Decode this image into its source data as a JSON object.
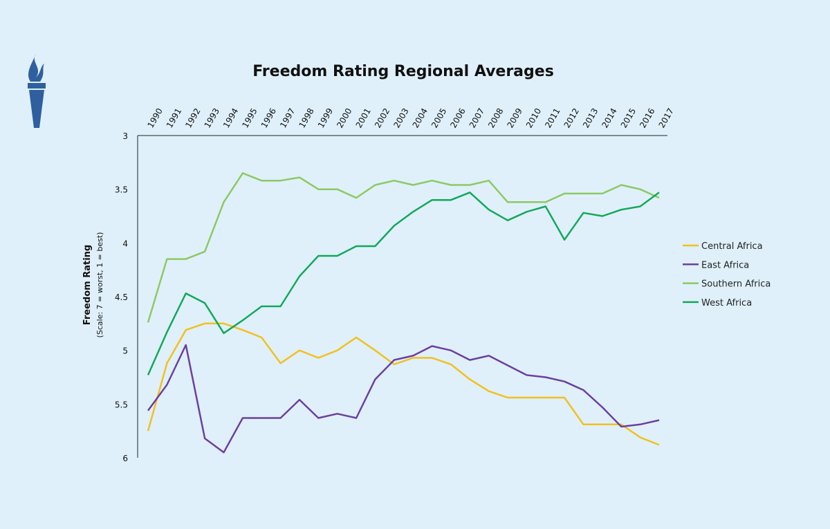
{
  "chart_data": {
    "type": "line",
    "title": "Freedom Rating Regional Averages",
    "xlabel": "",
    "ylabel": "Freedom Rating",
    "ylabel_sub": "(Scale: 7 = worst, 1 = best)",
    "ylim": [
      3,
      6
    ],
    "y_inverted": true,
    "y_ticks": [
      "3",
      "3.5",
      "4",
      "4.5",
      "5",
      "5.5",
      "6"
    ],
    "x_axis_position": "top",
    "grid": false,
    "legend_position": "right",
    "x": [
      "1990",
      "1991",
      "1992",
      "1993",
      "1994",
      "1995",
      "1996",
      "1997",
      "1998",
      "1999",
      "2000",
      "2001",
      "2002",
      "2003",
      "2004",
      "2005",
      "2006",
      "2007",
      "2008",
      "2009",
      "2010",
      "2011",
      "2012",
      "2013",
      "2014",
      "2015",
      "2016",
      "2017"
    ],
    "series": [
      {
        "name": "Central Africa",
        "color": "#f2c01e",
        "values": [
          5.75,
          5.12,
          4.81,
          4.75,
          4.75,
          4.81,
          4.88,
          5.12,
          5.0,
          5.07,
          5.0,
          4.88,
          5.0,
          5.13,
          5.07,
          5.07,
          5.13,
          5.27,
          5.38,
          5.44,
          5.44,
          5.44,
          5.44,
          5.69,
          5.69,
          5.69,
          5.81,
          5.88
        ]
      },
      {
        "name": "East Africa",
        "color": "#6b3fa0",
        "values": [
          5.56,
          5.32,
          4.95,
          5.82,
          5.95,
          5.63,
          5.63,
          5.63,
          5.46,
          5.63,
          5.59,
          5.63,
          5.27,
          5.09,
          5.05,
          4.96,
          5.0,
          5.09,
          5.05,
          5.14,
          5.23,
          5.25,
          5.29,
          5.37,
          5.53,
          5.71,
          5.69,
          5.65
        ]
      },
      {
        "name": "Southern Africa",
        "color": "#8cc963",
        "values": [
          4.74,
          4.15,
          4.15,
          4.08,
          3.62,
          3.35,
          3.42,
          3.42,
          3.39,
          3.5,
          3.5,
          3.58,
          3.46,
          3.42,
          3.46,
          3.42,
          3.46,
          3.46,
          3.42,
          3.62,
          3.62,
          3.62,
          3.54,
          3.54,
          3.54,
          3.46,
          3.5,
          3.58
        ]
      },
      {
        "name": "West Africa",
        "color": "#13a85a",
        "values": [
          5.23,
          4.83,
          4.47,
          4.56,
          4.84,
          4.72,
          4.59,
          4.59,
          4.31,
          4.12,
          4.12,
          4.03,
          4.03,
          3.84,
          3.71,
          3.6,
          3.6,
          3.53,
          3.69,
          3.79,
          3.71,
          3.66,
          3.97,
          3.72,
          3.75,
          3.69,
          3.66,
          3.53
        ]
      }
    ]
  },
  "logo": {
    "icon": "torch-icon",
    "color": "#2f5f9e"
  }
}
